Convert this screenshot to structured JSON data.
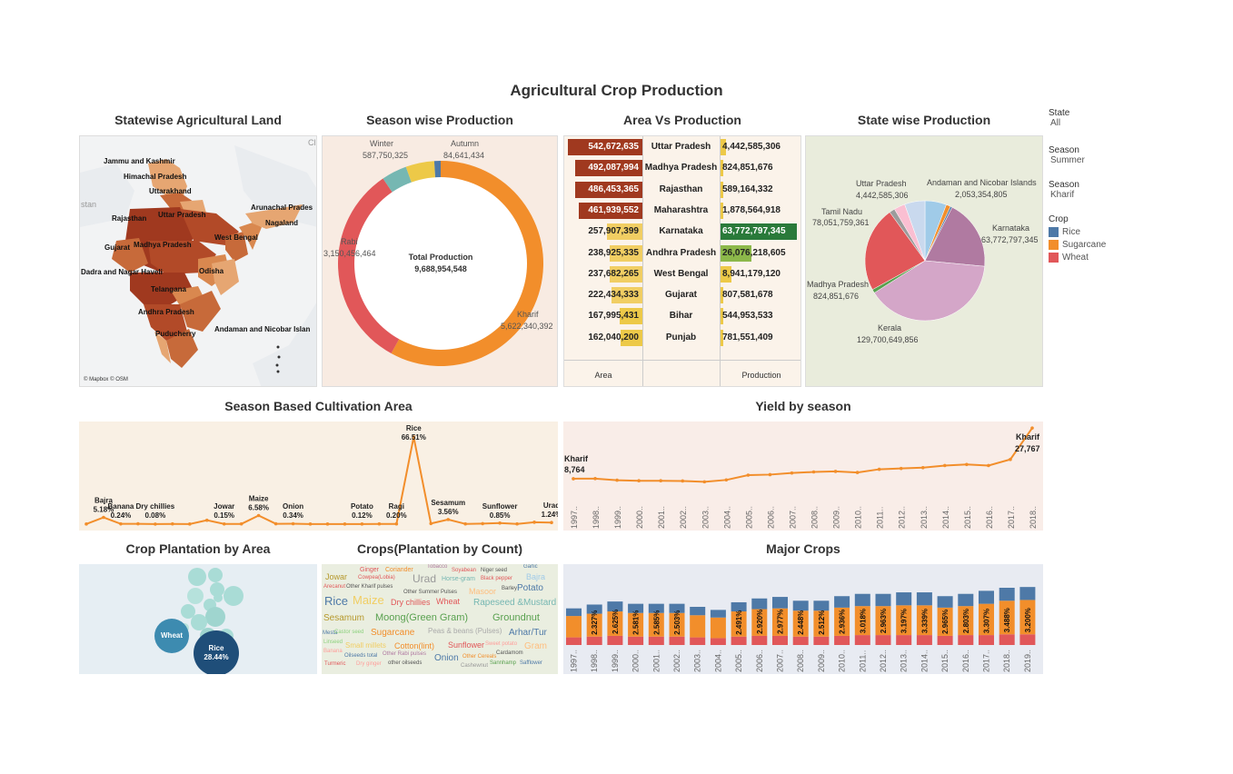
{
  "dashboard_title": "Agricultural Crop Production",
  "panels": {
    "map_title": "Statewise Agricultural Land",
    "season_title": "Season wise Production",
    "avp_title": "Area Vs Production",
    "statewise_title": "State wise Production",
    "cultivation_title": "Season Based Cultivation Area",
    "yield_title": "Yield by season",
    "plant_area_title": "Crop Plantation by Area",
    "plant_count_title": "Crops(Plantation by Count)",
    "major_title": "Major Crops"
  },
  "map": {
    "credit": "© Mapbox © OSM",
    "labels": [
      "Jammu and Kashmir",
      "Himachal Pradesh",
      "Uttarakhand",
      "Rajasthan",
      "Uttar Pradesh",
      "Arunachal Prades",
      "Nagaland",
      "West Bengal",
      "Gujarat",
      "Madhya Pradesh",
      "Dadra and Nagar Haveli",
      "Odisha",
      "Telangana",
      "Andhra Pradesh",
      "Puducherry",
      "Andaman and Nicobar Islan"
    ],
    "edge_left": "stan",
    "edge_right": "Cl"
  },
  "filters": [
    {
      "label": "State",
      "value": "All"
    },
    {
      "label": "Season",
      "value": "Summer"
    },
    {
      "label": "Season",
      "value": "Kharif"
    }
  ],
  "legend": {
    "title": "Crop",
    "items": [
      {
        "name": "Rice",
        "color": "#4e79a7"
      },
      {
        "name": "Sugarcane",
        "color": "#f28e2b"
      },
      {
        "name": "Wheat",
        "color": "#e15759"
      }
    ]
  },
  "colors": {
    "donut_kharif": "#f28e2b",
    "donut_rabi": "#e15759",
    "donut_winter": "#76b7b2",
    "donut_autumn": "#4e79a7",
    "donut_summer": "#edc948",
    "line": "#f28e2b",
    "map_dark": "#a0391f",
    "map_light": "#e6a672"
  },
  "donut": {
    "center_label": "Total Production",
    "center_value": "9,688,954,548",
    "labels": [
      {
        "name": "Winter",
        "value": "587,750,325"
      },
      {
        "name": "Autumn",
        "value": "84,641,434"
      },
      {
        "name": "Rabi",
        "value": "3,150,456,464"
      },
      {
        "name": "Kharif",
        "value": "5,622,340,392"
      }
    ]
  },
  "area_vs_production": {
    "rows": [
      {
        "state": "Uttar Pradesh",
        "area": "542,672,635",
        "production": "4,442,585,306",
        "area_val": 542672635,
        "prod_val": 4442585306
      },
      {
        "state": "Madhya Pradesh",
        "area": "492,087,994",
        "production": "824,851,676",
        "area_val": 492087994,
        "prod_val": 824851676
      },
      {
        "state": "Rajasthan",
        "area": "486,453,365",
        "production": "589,164,332",
        "area_val": 486453365,
        "prod_val": 589164332
      },
      {
        "state": "Maharashtra",
        "area": "461,939,552",
        "production": "1,878,564,918",
        "area_val": 461939552,
        "prod_val": 1878564918
      },
      {
        "state": "Karnataka",
        "area": "257,907,399",
        "production": "63,772,797,345",
        "area_val": 257907399,
        "prod_val": 63772797345
      },
      {
        "state": "Andhra Pradesh",
        "area": "238,925,335",
        "production": "26,076,218,605",
        "area_val": 238925335,
        "prod_val": 26076218605
      },
      {
        "state": "West Bengal",
        "area": "237,682,265",
        "production": "8,941,179,120",
        "area_val": 237682265,
        "prod_val": 8941179120
      },
      {
        "state": "Gujarat",
        "area": "222,434,333",
        "production": "807,581,678",
        "area_val": 222434333,
        "prod_val": 807581678
      },
      {
        "state": "Bihar",
        "area": "167,995,431",
        "production": "544,953,533",
        "area_val": 167995431,
        "prod_val": 544953533
      },
      {
        "state": "Punjab",
        "area": "162,040,200",
        "production": "781,551,409",
        "area_val": 162040200,
        "prod_val": 781551409
      }
    ],
    "footer_area": "Area",
    "footer_production": "Production"
  },
  "state_pie": {
    "labels": [
      {
        "name": "Uttar Pradesh",
        "value": "4,442,585,306"
      },
      {
        "name": "Andaman and Nicobar Islands",
        "value": "2,053,354,805"
      },
      {
        "name": "Tamil Nadu",
        "value": "78,051,759,361"
      },
      {
        "name": "Karnataka",
        "value": "63,772,797,345"
      },
      {
        "name": "Madhya Pradesh",
        "value": "824,851,676"
      },
      {
        "name": "Kerala",
        "value": "129,700,649,856"
      }
    ]
  },
  "cultivation": {
    "labels": [
      {
        "crop": "Bajra",
        "pct": "5.18%"
      },
      {
        "crop": "Banana",
        "pct": "0.24%"
      },
      {
        "crop": "Dry chillies",
        "pct": "0.08%"
      },
      {
        "crop": "Jowar",
        "pct": "0.15%"
      },
      {
        "crop": "Maize",
        "pct": "6.58%"
      },
      {
        "crop": "Onion",
        "pct": "0.34%"
      },
      {
        "crop": "Potato",
        "pct": "0.12%"
      },
      {
        "crop": "Ragi",
        "pct": "0.20%"
      },
      {
        "crop": "Rice",
        "pct": "66.51%"
      },
      {
        "crop": "Sesamum",
        "pct": "3.56%"
      },
      {
        "crop": "Sunflower",
        "pct": "0.85%"
      },
      {
        "crop": "Urad",
        "pct": "1.24%"
      }
    ]
  },
  "chart_data": [
    {
      "type": "line",
      "title": "Season Based Cultivation Area",
      "series": [
        {
          "name": "Area share (%)",
          "values": [
            0.1,
            5.18,
            0.24,
            0.3,
            0.08,
            0.2,
            0.1,
            3.0,
            0.15,
            0.2,
            6.58,
            0.3,
            0.34,
            0.1,
            0.1,
            0.1,
            0.12,
            0.2,
            0.2,
            66.51,
            0.5,
            3.56,
            0.2,
            0.4,
            0.85,
            0.2,
            1.5,
            1.24
          ]
        }
      ],
      "ylim": [
        0,
        70
      ]
    },
    {
      "type": "line",
      "title": "Yield by season",
      "x": [
        "1997..",
        "1998..",
        "1999..",
        "2000..",
        "2001..",
        "2002..",
        "2003..",
        "2004..",
        "2005..",
        "2006..",
        "2007..",
        "2008..",
        "2009..",
        "2010..",
        "2011..",
        "2012..",
        "2013..",
        "2014..",
        "2015..",
        "2016..",
        "2017..",
        "2018.."
      ],
      "series": [
        {
          "name": "Kharif",
          "values": [
            8764,
            8800,
            8200,
            8000,
            8000,
            7900,
            7600,
            8300,
            10100,
            10300,
            10900,
            11300,
            11500,
            11100,
            12300,
            12600,
            12900,
            13700,
            14100,
            13700,
            16000,
            27767
          ]
        }
      ],
      "annotations": [
        {
          "label": "Kharif",
          "value": "8,764"
        },
        {
          "label": "Kharif",
          "value": "27,767"
        }
      ]
    },
    {
      "type": "bar",
      "title": "Major Crops",
      "categories": [
        "1997..",
        "1998..",
        "1999..",
        "2000..",
        "2001..",
        "2002..",
        "2003..",
        "2004..",
        "2005..",
        "2006..",
        "2007..",
        "2008..",
        "2009..",
        "2010..",
        "2011..",
        "2012..",
        "2013..",
        "2014..",
        "2015..",
        "2016..",
        "2017..",
        "2018..",
        "2019.."
      ],
      "series": [
        {
          "name": "Rice",
          "values": [
            10,
            12,
            13,
            12,
            12,
            12,
            11,
            10,
            12,
            14,
            15,
            13,
            13,
            15,
            16,
            16,
            17,
            17,
            15,
            16,
            17,
            17,
            17
          ]
        },
        {
          "name": "Sugarcane",
          "values": [
            28,
            30,
            32,
            31,
            31,
            31,
            29,
            27,
            33,
            35,
            36,
            34,
            34,
            37,
            38,
            38,
            39,
            39,
            37,
            38,
            41,
            44,
            45
          ]
        },
        {
          "name": "Wheat",
          "values": [
            10,
            11,
            12,
            11,
            11,
            11,
            10,
            9,
            11,
            12,
            12,
            11,
            11,
            12,
            13,
            13,
            13,
            13,
            12,
            13,
            13,
            14,
            14
          ]
        }
      ],
      "bar_labels": [
        "",
        "2.327%",
        "2.625%",
        "2.581%",
        "2.585%",
        "2.503%",
        "",
        "",
        "2.491%",
        "2.920%",
        "2.977%",
        "2.448%",
        "2.512%",
        "2.936%",
        "3.018%",
        "2.963%",
        "3.197%",
        "3.339%",
        "2.965%",
        "2.803%",
        "3.307%",
        "3.488%",
        "3.200%"
      ]
    }
  ],
  "bubbles": {
    "wheat": {
      "label": "Wheat"
    },
    "rice": {
      "label": "Rice",
      "pct": "28.44%"
    }
  },
  "wordcloud": {
    "words": [
      {
        "t": "Tobacco",
        "c": "#b07aa1"
      },
      {
        "t": "Garlic",
        "c": "#4e79a7"
      },
      {
        "t": "Ginger",
        "c": "#e15759"
      },
      {
        "t": "Coriander",
        "c": "#f28e2b"
      },
      {
        "t": "Soyabean",
        "c": "#e15759"
      },
      {
        "t": "Niger seed",
        "c": "#555"
      },
      {
        "t": "Jowar",
        "c": "#b6992d"
      },
      {
        "t": "Cowpea(Lobia)",
        "c": "#e15759"
      },
      {
        "t": "Urad",
        "c": "#999"
      },
      {
        "t": "Horse-gram",
        "c": "#76b7b2"
      },
      {
        "t": "Black pepper",
        "c": "#e15759"
      },
      {
        "t": "Bajra",
        "c": "#a0cbe8"
      },
      {
        "t": "Arecanut",
        "c": "#e15759"
      },
      {
        "t": "Other Kharif pulses",
        "c": "#555"
      },
      {
        "t": "Other Summer Pulses",
        "c": "#555"
      },
      {
        "t": "Masoor",
        "c": "#ffbe7d"
      },
      {
        "t": "Barley",
        "c": "#555"
      },
      {
        "t": "Potato",
        "c": "#4e79a7"
      },
      {
        "t": "Rice",
        "c": "#4e79a7"
      },
      {
        "t": "Maize",
        "c": "#f1ce63"
      },
      {
        "t": "Dry chillies",
        "c": "#e15759"
      },
      {
        "t": "Wheat",
        "c": "#e15759"
      },
      {
        "t": "Rapeseed &Mustard",
        "c": "#76b7b2"
      },
      {
        "t": "Sesamum",
        "c": "#b6992d"
      },
      {
        "t": "Moong(Green Gram)",
        "c": "#59a14f"
      },
      {
        "t": "Groundnut",
        "c": "#59a14f"
      },
      {
        "t": "Mesta",
        "c": "#4e79a7"
      },
      {
        "t": "Castor seed",
        "c": "#8cd17d"
      },
      {
        "t": "Sugarcane",
        "c": "#f28e2b"
      },
      {
        "t": "Peas & beans (Pulses)",
        "c": "#aaa"
      },
      {
        "t": "Arhar/Tur",
        "c": "#4e79a7"
      },
      {
        "t": "Linseed",
        "c": "#8cd17d"
      },
      {
        "t": "Small millets",
        "c": "#f1ce63"
      },
      {
        "t": "Cotton(lint)",
        "c": "#f28e2b"
      },
      {
        "t": "Sunflower",
        "c": "#e15759"
      },
      {
        "t": "Sweet potato",
        "c": "#ff9d9a"
      },
      {
        "t": "Gram",
        "c": "#ffbe7d"
      },
      {
        "t": "Banana",
        "c": "#ff9d9a"
      },
      {
        "t": "Oilseeds total",
        "c": "#4e79a7"
      },
      {
        "t": "Other Rabi pulses",
        "c": "#b07aa1"
      },
      {
        "t": "Onion",
        "c": "#4e79a7"
      },
      {
        "t": "Other Cereals",
        "c": "#f28e2b"
      },
      {
        "t": "Cardamom",
        "c": "#555"
      },
      {
        "t": "Turmeric",
        "c": "#e15759"
      },
      {
        "t": "Dry ginger",
        "c": "#ff9d9a"
      },
      {
        "t": "other oilseeds",
        "c": "#555"
      },
      {
        "t": "Cashewnut",
        "c": "#999"
      },
      {
        "t": "Sannhamp",
        "c": "#59a14f"
      },
      {
        "t": "Safflower",
        "c": "#4e79a7"
      }
    ]
  }
}
